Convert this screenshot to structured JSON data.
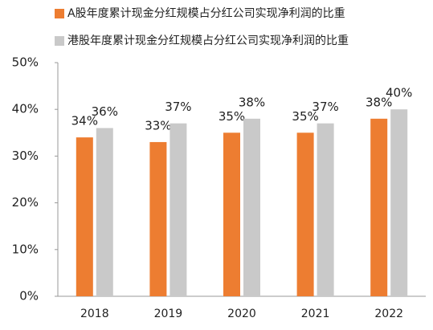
{
  "chart_data": {
    "type": "bar",
    "categories": [
      "2018",
      "2019",
      "2020",
      "2021",
      "2022"
    ],
    "series": [
      {
        "name": "A股年度累计现金分红规模占分红公司实现净利润的比重",
        "color": "#ed7d31",
        "values": [
          34,
          33,
          35,
          35,
          38
        ],
        "value_labels": [
          "34%",
          "33%",
          "35%",
          "35%",
          "38%"
        ]
      },
      {
        "name": "港股年度累计现金分红规模占分红公司实现净利润的比重",
        "color": "#c9c9c9",
        "values": [
          36,
          37,
          38,
          37,
          40
        ],
        "value_labels": [
          "36%",
          "37%",
          "38%",
          "37%",
          "40%"
        ]
      }
    ],
    "ylim": [
      0,
      50
    ],
    "yticks": [
      {
        "value": 0,
        "label": "0%"
      },
      {
        "value": 10,
        "label": "10%"
      },
      {
        "value": 20,
        "label": "20%"
      },
      {
        "value": 30,
        "label": "30%"
      },
      {
        "value": 40,
        "label": "40%"
      },
      {
        "value": 50,
        "label": "50%"
      }
    ],
    "grid": false
  }
}
